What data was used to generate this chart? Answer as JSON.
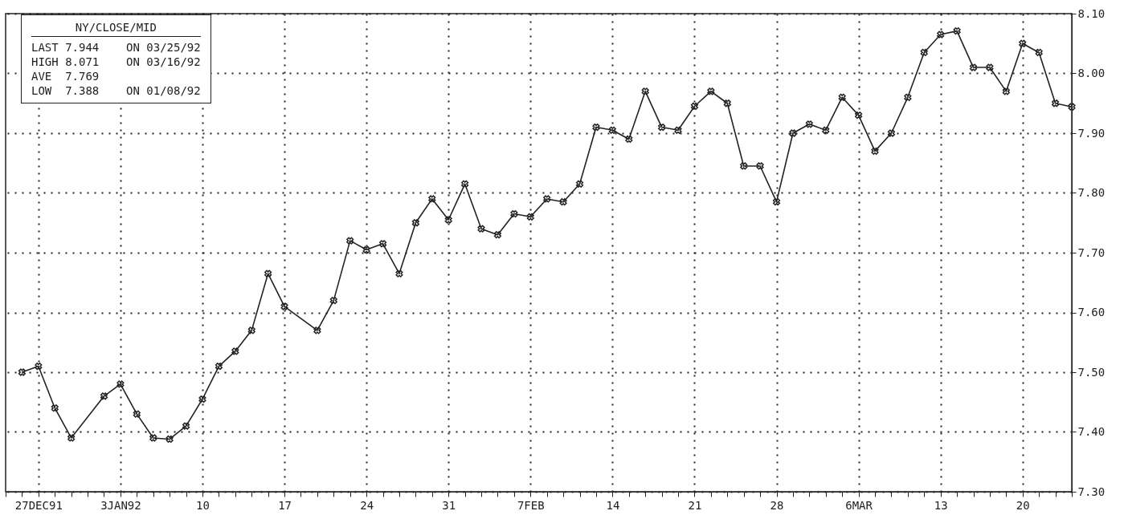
{
  "chart_data": {
    "type": "line",
    "categories": [
      null,
      null,
      "27DEC91",
      null,
      null,
      null,
      null,
      "3JAN92",
      null,
      null,
      null,
      null,
      "10",
      null,
      null,
      null,
      null,
      "17",
      null,
      null,
      null,
      null,
      "24",
      null,
      null,
      null,
      null,
      "31",
      null,
      null,
      null,
      null,
      "7FEB",
      null,
      null,
      null,
      null,
      "14",
      null,
      null,
      null,
      null,
      "21",
      null,
      null,
      null,
      null,
      "28",
      null,
      null,
      null,
      null,
      "6MAR",
      null,
      null,
      null,
      null,
      "13",
      null,
      null,
      null,
      null,
      "20",
      null,
      null,
      null
    ],
    "series": [
      {
        "color": "#222222",
        "values": [
          null,
          7.5,
          7.51,
          7.44,
          7.39,
          null,
          7.46,
          7.48,
          7.43,
          7.39,
          7.388,
          7.41,
          7.455,
          7.51,
          7.535,
          7.57,
          7.665,
          7.61,
          null,
          7.57,
          7.62,
          7.72,
          7.705,
          7.715,
          7.665,
          7.75,
          7.79,
          7.755,
          7.815,
          7.74,
          7.73,
          7.765,
          7.76,
          7.79,
          7.785,
          7.815,
          7.91,
          7.905,
          7.89,
          7.97,
          7.91,
          7.905,
          7.945,
          7.97,
          7.95,
          7.845,
          7.845,
          7.785,
          7.9,
          7.915,
          7.905,
          7.96,
          7.93,
          7.87,
          7.9,
          7.96,
          8.035,
          8.065,
          8.071,
          8.01,
          8.01,
          7.97,
          8.05,
          8.035,
          7.95,
          7.944
        ]
      }
    ],
    "ylim": [
      7.3,
      8.1
    ],
    "yticks": [
      {
        "value": 7.3,
        "label": "7.30"
      },
      {
        "value": 7.4,
        "label": "7.40"
      },
      {
        "value": 7.5,
        "label": "7.50"
      },
      {
        "value": 7.6,
        "label": "7.60"
      },
      {
        "value": 7.7,
        "label": "7.70"
      },
      {
        "value": 7.8,
        "label": "7.80"
      },
      {
        "value": 7.9,
        "label": "7.90"
      },
      {
        "value": 8.0,
        "label": "8.00"
      },
      {
        "value": 8.1,
        "label": "8.10"
      }
    ],
    "grid": true,
    "marker": "cross",
    "line_style": "solid",
    "annotations": [
      "NY/CLOSE/MID",
      "LAST 7.944    ON 03/25/92",
      "HIGH 8.071    ON 03/16/92",
      "AVE  7.769",
      "LOW  7.388    ON 01/08/92"
    ]
  }
}
